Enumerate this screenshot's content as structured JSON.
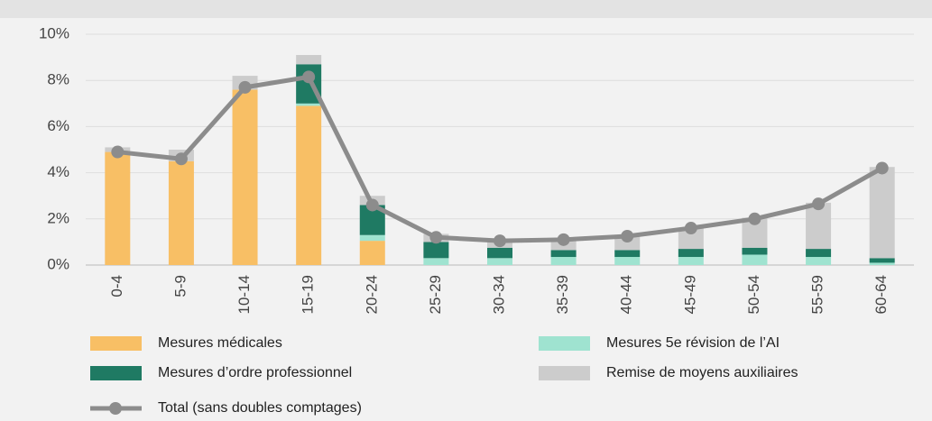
{
  "chart_data": {
    "type": "bar",
    "stacked": true,
    "categories": [
      "0-4",
      "5-9",
      "10-14",
      "15-19",
      "20-24",
      "25-29",
      "30-34",
      "35-39",
      "40-44",
      "45-49",
      "50-54",
      "55-59",
      "60-64"
    ],
    "series": [
      {
        "name": "Mesures médicales",
        "color": "#f8bf65",
        "values": [
          4.9,
          4.5,
          7.6,
          6.9,
          1.05,
          0,
          0,
          0,
          0,
          0,
          0,
          0,
          0
        ]
      },
      {
        "name": "Mesures 5e révision de l’AI",
        "color": "#9fe3d0",
        "values": [
          0,
          0,
          0,
          0.1,
          0.25,
          0.3,
          0.3,
          0.35,
          0.35,
          0.35,
          0.45,
          0.35,
          0.1
        ]
      },
      {
        "name": "Mesures d’ordre professionnel",
        "color": "#1f7a63",
        "values": [
          0,
          0,
          0,
          1.7,
          1.3,
          0.7,
          0.45,
          0.3,
          0.3,
          0.35,
          0.3,
          0.35,
          0.2
        ]
      },
      {
        "name": "Remise de moyens auxiliaires",
        "color": "#cccccc",
        "values": [
          0.2,
          0.5,
          0.6,
          0.4,
          0.4,
          0.35,
          0.35,
          0.4,
          0.6,
          0.9,
          1.3,
          2.0,
          3.95
        ]
      },
      {
        "name": "Total (sans doubles comptages)",
        "type": "line",
        "color": "#8c8c8c",
        "values": [
          4.9,
          4.6,
          7.7,
          8.15,
          2.6,
          1.2,
          1.05,
          1.1,
          1.25,
          1.6,
          2.0,
          2.65,
          4.2
        ]
      }
    ],
    "ylim": [
      0,
      10
    ],
    "yticks": [
      {
        "value": 0,
        "label": "0%"
      },
      {
        "value": 2,
        "label": "2%"
      },
      {
        "value": 4,
        "label": "4%"
      },
      {
        "value": 6,
        "label": "6%"
      },
      {
        "value": 8,
        "label": "8%"
      },
      {
        "value": 10,
        "label": "10%"
      }
    ],
    "grid": true
  }
}
